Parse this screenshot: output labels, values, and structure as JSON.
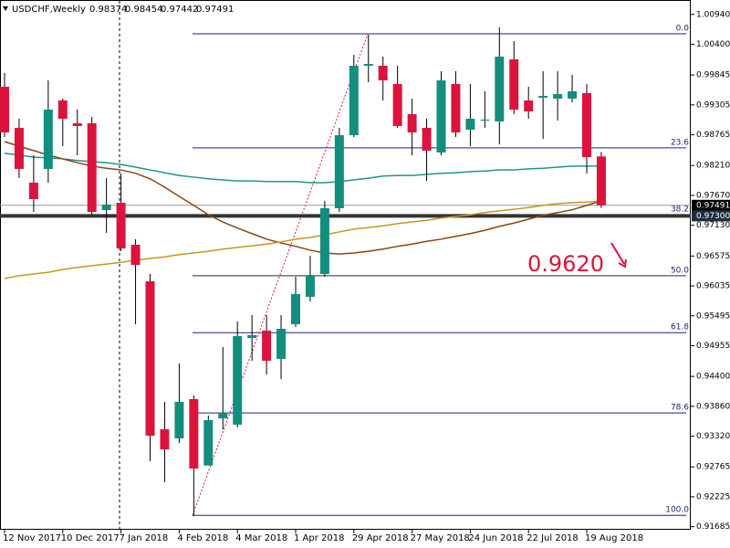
{
  "chart_data": {
    "type": "candlestick",
    "title": "USDCHF,Weekly",
    "categories": [
      "12 Nov 2017",
      null,
      null,
      null,
      "10 Dec 2017",
      null,
      null,
      null,
      "7 Jan 2018",
      null,
      null,
      null,
      "4 Feb 2018",
      null,
      null,
      null,
      "4 Mar 2018",
      null,
      null,
      null,
      "1 Apr 2018",
      null,
      null,
      null,
      "29 Apr 2018",
      null,
      null,
      null,
      "27 May 2018",
      null,
      null,
      null,
      "24 Jun 2018",
      null,
      null,
      null,
      "22 Jul 2018",
      null,
      null,
      null,
      "19 Aug 2018",
      null
    ],
    "open": [
      0.99633,
      0.9889,
      0.979,
      0.98148,
      0.99385,
      0.98973,
      0.98973,
      0.97405,
      0.97537,
      0.96778,
      0.96118,
      0.93445,
      0.9328,
      0.9399,
      0.9279,
      0.93643,
      0.93528,
      0.95095,
      0.95227,
      0.94716,
      0.95343,
      0.95838,
      0.9625,
      0.97438,
      0.98758,
      1.00012,
      1.00012,
      0.99682,
      0.99138,
      0.9889,
      0.98445,
      0.99682,
      0.98857,
      0.99022,
      0.99006,
      1.00128,
      0.99385,
      0.99435,
      0.99418,
      0.99418,
      0.99517,
      0.98374
    ],
    "high": [
      0.9988,
      0.99055,
      0.98395,
      0.99748,
      0.99418,
      0.9922,
      0.99088,
      0.97983,
      0.98065,
      0.96877,
      0.9625,
      0.9394,
      0.94633,
      0.94056,
      0.93693,
      0.9493,
      0.95392,
      0.95508,
      0.95508,
      0.95508,
      0.96201,
      0.9658,
      0.9757,
      0.9889,
      1.0021,
      1.00573,
      1.00177,
      1.00012,
      0.99418,
      0.99055,
      0.99913,
      0.99913,
      0.99682,
      0.9955,
      1.00705,
      1.00458,
      0.99633,
      0.99913,
      0.99913,
      0.99847,
      0.99682,
      0.98454
    ],
    "low": [
      0.98725,
      0.97983,
      0.97372,
      0.979,
      0.9856,
      0.98395,
      0.97323,
      0.96993,
      0.96663,
      0.95343,
      0.92868,
      0.92488,
      0.93198,
      0.91878,
      0.9279,
      0.93445,
      0.93478,
      0.94683,
      0.94435,
      0.94353,
      0.95293,
      0.95755,
      0.96201,
      0.97372,
      0.98725,
      0.99715,
      0.99385,
      0.9889,
      0.98395,
      0.97933,
      0.98395,
      0.98725,
      0.9856,
      0.9889,
      0.98593,
      0.99138,
      0.99055,
      0.98692,
      0.99022,
      0.99352,
      0.98065,
      0.97442
    ],
    "close": [
      0.98808,
      0.98148,
      0.97603,
      0.9922,
      0.99055,
      0.98923,
      0.97372,
      0.97504,
      0.96712,
      0.96415,
      0.93329,
      0.93082,
      0.9394,
      0.92736,
      0.9361,
      0.93742,
      0.95128,
      0.95145,
      0.94683,
      0.9526,
      0.95887,
      0.96217,
      0.97438,
      0.98758,
      1.00012,
      1.00045,
      0.99748,
      0.98923,
      0.98808,
      0.98478,
      0.99748,
      0.98808,
      0.99055,
      0.99039,
      1.00177,
      0.9922,
      0.99187,
      0.99468,
      0.99501,
      0.9955,
      0.98362,
      0.97491
    ],
    "up_color": "#138e7d",
    "down_color": "#dc143c",
    "moving_averages": [
      {
        "color": "#20948b",
        "values": [
          0.9843,
          0.984,
          0.9836,
          0.9835,
          0.9833,
          0.983,
          0.9828,
          0.9826,
          0.9823,
          0.9818,
          0.9813,
          0.9808,
          0.9803,
          0.98,
          0.9797,
          0.9795,
          0.9793,
          0.9793,
          0.9792,
          0.9792,
          0.9792,
          0.979,
          0.979,
          0.9792,
          0.9795,
          0.9798,
          0.9802,
          0.9803,
          0.9803,
          0.9805,
          0.9807,
          0.9808,
          0.981,
          0.9811,
          0.9813,
          0.9813,
          0.9815,
          0.9816,
          0.9818,
          0.982,
          0.982,
          0.982
        ]
      },
      {
        "color": "#8b4513",
        "values": [
          0.9864,
          0.9856,
          0.9848,
          0.984,
          0.9833,
          0.9826,
          0.982,
          0.9816,
          0.9813,
          0.9807,
          0.9797,
          0.9782,
          0.9765,
          0.9749,
          0.9732,
          0.9719,
          0.9708,
          0.9698,
          0.9688,
          0.9681,
          0.9675,
          0.9668,
          0.9663,
          0.9661,
          0.9663,
          0.9666,
          0.967,
          0.9675,
          0.9679,
          0.9684,
          0.9688,
          0.9693,
          0.9698,
          0.9704,
          0.9711,
          0.9717,
          0.9724,
          0.9731,
          0.9736,
          0.9741,
          0.9749,
          0.9757
        ]
      },
      {
        "color": "#c8961e",
        "values": [
          0.9617,
          0.9622,
          0.9625,
          0.9628,
          0.9633,
          0.9637,
          0.964,
          0.9643,
          0.9646,
          0.965,
          0.9653,
          0.9656,
          0.966,
          0.9663,
          0.9666,
          0.967,
          0.9673,
          0.9676,
          0.9679,
          0.9683,
          0.9688,
          0.9691,
          0.9696,
          0.9701,
          0.9706,
          0.9709,
          0.9712,
          0.9716,
          0.9719,
          0.9722,
          0.9726,
          0.9729,
          0.9732,
          0.9736,
          0.9739,
          0.9742,
          0.9745,
          0.9749,
          0.9752,
          0.9754,
          0.9755,
          0.9757
        ]
      }
    ],
    "fibonacci": [
      {
        "label": "0.0",
        "price": 1.0059
      },
      {
        "label": "23.6",
        "price": 0.9853
      },
      {
        "label": "38.2",
        "price": 0.9732
      },
      {
        "label": "50.0",
        "price": 0.9622
      },
      {
        "label": "61.8",
        "price": 0.9519
      },
      {
        "label": "78.6",
        "price": 0.9374
      },
      {
        "label": "100.0",
        "price": 0.9189
      }
    ],
    "fib_color": "#1a237e",
    "horizontal_line": {
      "value": 0.973,
      "label": "0.97300"
    },
    "annotation": "0.9620",
    "ylim": [
      0.9163,
      1.012
    ],
    "yticks": [
      {
        "value": 1.0094,
        "label": "1.00940"
      },
      {
        "value": 1.004,
        "label": "1.00400"
      },
      0.99845,
      0.99305,
      0.98765,
      {
        "value": 0.9821,
        "label": "0.98210"
      },
      {
        "value": 0.9767,
        "label": "0.97670"
      },
      {
        "value": 0.9713,
        "label": "0.97130"
      },
      0.96575,
      0.96035,
      0.95495,
      0.94955,
      {
        "value": 0.944,
        "label": "0.94400"
      },
      {
        "value": 0.9386,
        "label": "0.93860"
      },
      {
        "value": 0.9332,
        "label": "0.93320"
      },
      0.92765,
      0.92225,
      0.91685
    ]
  }
}
